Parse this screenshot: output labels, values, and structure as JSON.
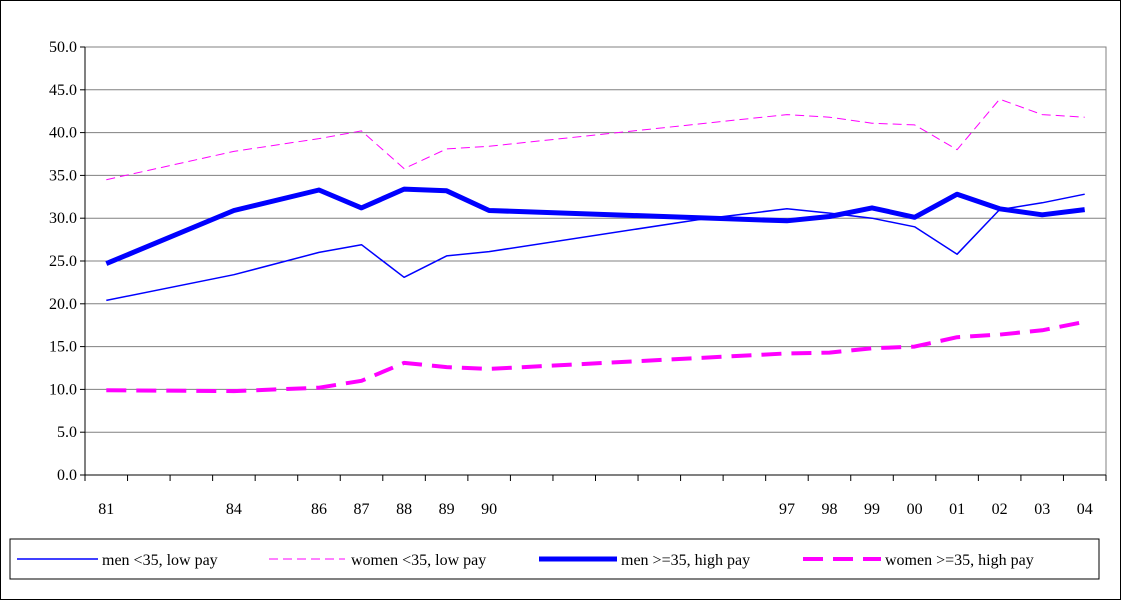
{
  "chart_data": {
    "type": "line",
    "title": "",
    "xlabel": "",
    "ylabel": "",
    "ylim": [
      0,
      50
    ],
    "y_ticks": [
      "0.0",
      "5.0",
      "10.0",
      "15.0",
      "20.0",
      "25.0",
      "30.0",
      "35.0",
      "40.0",
      "45.0",
      "50.0"
    ],
    "x": [
      1981,
      1982,
      1983,
      1984,
      1985,
      1986,
      1987,
      1988,
      1989,
      1990,
      1991,
      1992,
      1993,
      1994,
      1995,
      1996,
      1997,
      1998,
      1999,
      2000,
      2001,
      2002,
      2003,
      2004
    ],
    "x_tick_labels": [
      {
        "x": 1981,
        "label": "81"
      },
      {
        "x": 1984,
        "label": "84"
      },
      {
        "x": 1986,
        "label": "86"
      },
      {
        "x": 1987,
        "label": "87"
      },
      {
        "x": 1988,
        "label": "88"
      },
      {
        "x": 1989,
        "label": "89"
      },
      {
        "x": 1990,
        "label": "90"
      },
      {
        "x": 1997,
        "label": "97"
      },
      {
        "x": 1998,
        "label": "98"
      },
      {
        "x": 1999,
        "label": "99"
      },
      {
        "x": 2000,
        "label": "00"
      },
      {
        "x": 2001,
        "label": "01"
      },
      {
        "x": 2002,
        "label": "02"
      },
      {
        "x": 2003,
        "label": "03"
      },
      {
        "x": 2004,
        "label": "04"
      }
    ],
    "grid": true,
    "legend_position": "bottom",
    "series": [
      {
        "name": "men <35, low pay",
        "color": "#0000FF",
        "style": "solid-thin",
        "points": [
          [
            1981,
            20.4
          ],
          [
            1984,
            23.4
          ],
          [
            1986,
            26.0
          ],
          [
            1987,
            26.9
          ],
          [
            1988,
            23.1
          ],
          [
            1989,
            25.6
          ],
          [
            1990,
            26.1
          ],
          [
            1995,
            29.9
          ],
          [
            1997,
            31.1
          ],
          [
            1998,
            30.6
          ],
          [
            1999,
            30.0
          ],
          [
            2000,
            29.0
          ],
          [
            2001,
            25.8
          ],
          [
            2002,
            31.0
          ],
          [
            2003,
            31.8
          ],
          [
            2004,
            32.8
          ]
        ]
      },
      {
        "name": "women <35, low pay",
        "color": "#FF00FF",
        "style": "dashed-thin",
        "points": [
          [
            1981,
            34.5
          ],
          [
            1984,
            37.8
          ],
          [
            1986,
            39.3
          ],
          [
            1987,
            40.2
          ],
          [
            1988,
            35.8
          ],
          [
            1989,
            38.1
          ],
          [
            1990,
            38.4
          ],
          [
            1997,
            42.1
          ],
          [
            1998,
            41.8
          ],
          [
            1999,
            41.1
          ],
          [
            2000,
            40.9
          ],
          [
            2001,
            38.0
          ],
          [
            2002,
            43.9
          ],
          [
            2003,
            42.1
          ],
          [
            2004,
            41.8
          ]
        ]
      },
      {
        "name": "men >=35, high pay",
        "color": "#0000FF",
        "style": "solid-thick",
        "points": [
          [
            1981,
            24.7
          ],
          [
            1984,
            30.9
          ],
          [
            1986,
            33.3
          ],
          [
            1987,
            31.2
          ],
          [
            1988,
            33.4
          ],
          [
            1989,
            33.2
          ],
          [
            1990,
            30.9
          ],
          [
            1997,
            29.7
          ],
          [
            1998,
            30.2
          ],
          [
            1999,
            31.2
          ],
          [
            2000,
            30.1
          ],
          [
            2001,
            32.8
          ],
          [
            2002,
            31.1
          ],
          [
            2003,
            30.4
          ],
          [
            2004,
            31.0
          ]
        ]
      },
      {
        "name": "women >=35, high pay",
        "color": "#FF00FF",
        "style": "dashed-thick",
        "points": [
          [
            1981,
            9.9
          ],
          [
            1984,
            9.8
          ],
          [
            1986,
            10.2
          ],
          [
            1987,
            11.0
          ],
          [
            1988,
            13.1
          ],
          [
            1989,
            12.6
          ],
          [
            1990,
            12.4
          ],
          [
            1997,
            14.2
          ],
          [
            1998,
            14.3
          ],
          [
            1999,
            14.8
          ],
          [
            2000,
            15.0
          ],
          [
            2001,
            16.1
          ],
          [
            2002,
            16.4
          ],
          [
            2003,
            16.9
          ],
          [
            2004,
            17.9
          ]
        ]
      }
    ]
  }
}
